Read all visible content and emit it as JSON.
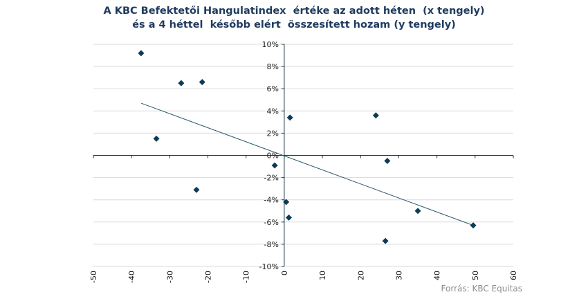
{
  "title_line1": "A KBC Befektetői Hangulatindex  értéke az adott héten  (x tengely)",
  "title_line2": "és a 4 héttel  később elért  összesített hozam (y tengely)",
  "source": "Forrás: KBC Equitas",
  "colors": {
    "marker": "#0d3a55",
    "trendline": "#2b5a6e",
    "axis": "#1a3a4f",
    "grid": "#d9d9d9",
    "title": "#1f3a5f"
  },
  "chart_data": {
    "type": "scatter",
    "title": "A KBC Befektetői Hangulatindex  értéke az adott héten  (x tengely) és a 4 héttel  később elért  összesített hozam (y tengely)",
    "xlabel": "",
    "ylabel": "",
    "xlim": [
      -50,
      60
    ],
    "ylim": [
      -10,
      10
    ],
    "grid": "horizontal",
    "marker": "diamond",
    "x_ticks": [
      -50,
      -40,
      -30,
      -20,
      -10,
      0,
      10,
      20,
      30,
      40,
      50,
      60
    ],
    "y_ticks": [
      10,
      8,
      6,
      4,
      2,
      0,
      -2,
      -4,
      -6,
      -8,
      -10
    ],
    "y_tick_labels": [
      "10%",
      "8%",
      "6%",
      "4%",
      "2%",
      "0%",
      "-2%",
      "-4%",
      "-6%",
      "-8%",
      "-10%"
    ],
    "points": [
      {
        "x": -37.5,
        "y": 9.2
      },
      {
        "x": -27,
        "y": 6.5
      },
      {
        "x": -21.5,
        "y": 6.6
      },
      {
        "x": -33.5,
        "y": 1.5
      },
      {
        "x": -23,
        "y": -3.1
      },
      {
        "x": -2.5,
        "y": -0.9
      },
      {
        "x": 1.5,
        "y": 3.4
      },
      {
        "x": 0.5,
        "y": -4.2
      },
      {
        "x": 1.2,
        "y": -5.6
      },
      {
        "x": 24,
        "y": 3.6
      },
      {
        "x": 27,
        "y": -0.5
      },
      {
        "x": 35,
        "y": -5.0
      },
      {
        "x": 26.5,
        "y": -7.7
      },
      {
        "x": 49.5,
        "y": -6.3
      }
    ],
    "trendline": {
      "x": [
        -37.5,
        49.5
      ],
      "y": [
        4.7,
        -6.3
      ]
    }
  }
}
